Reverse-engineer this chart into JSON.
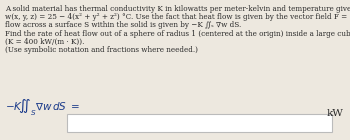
{
  "background_color": "#ede8df",
  "text_color": "#2a2a2a",
  "body_text_lines": [
    "A solid material has thermal conductivity K in kilowatts per meter-kelvin and temperature given at each point by",
    "w(x, y, z) = 25 − 4(x² + y² + z²) °C. Use the fact that heat flow is given by the vector field F = −K∇w and the rate of heat",
    "flow across a surface S within the solid is given by −K ∬ₛ ∇w dS."
  ],
  "problem_lines": [
    "Find the rate of heat flow out of a sphere of radius 1 (centered at the origin) inside a large cube of copper",
    "(K = 400 kW/(m · K))."
  ],
  "hint_line": "(Use symbolic notation and fractions where needed.)",
  "answer_unit": "kW",
  "box_color": "#ffffff",
  "box_border_color": "#bbbbbb",
  "font_size_body": 5.2,
  "font_size_answer": 7.5,
  "label_color": "#1a3a8a",
  "text_font": "DejaVu Serif"
}
